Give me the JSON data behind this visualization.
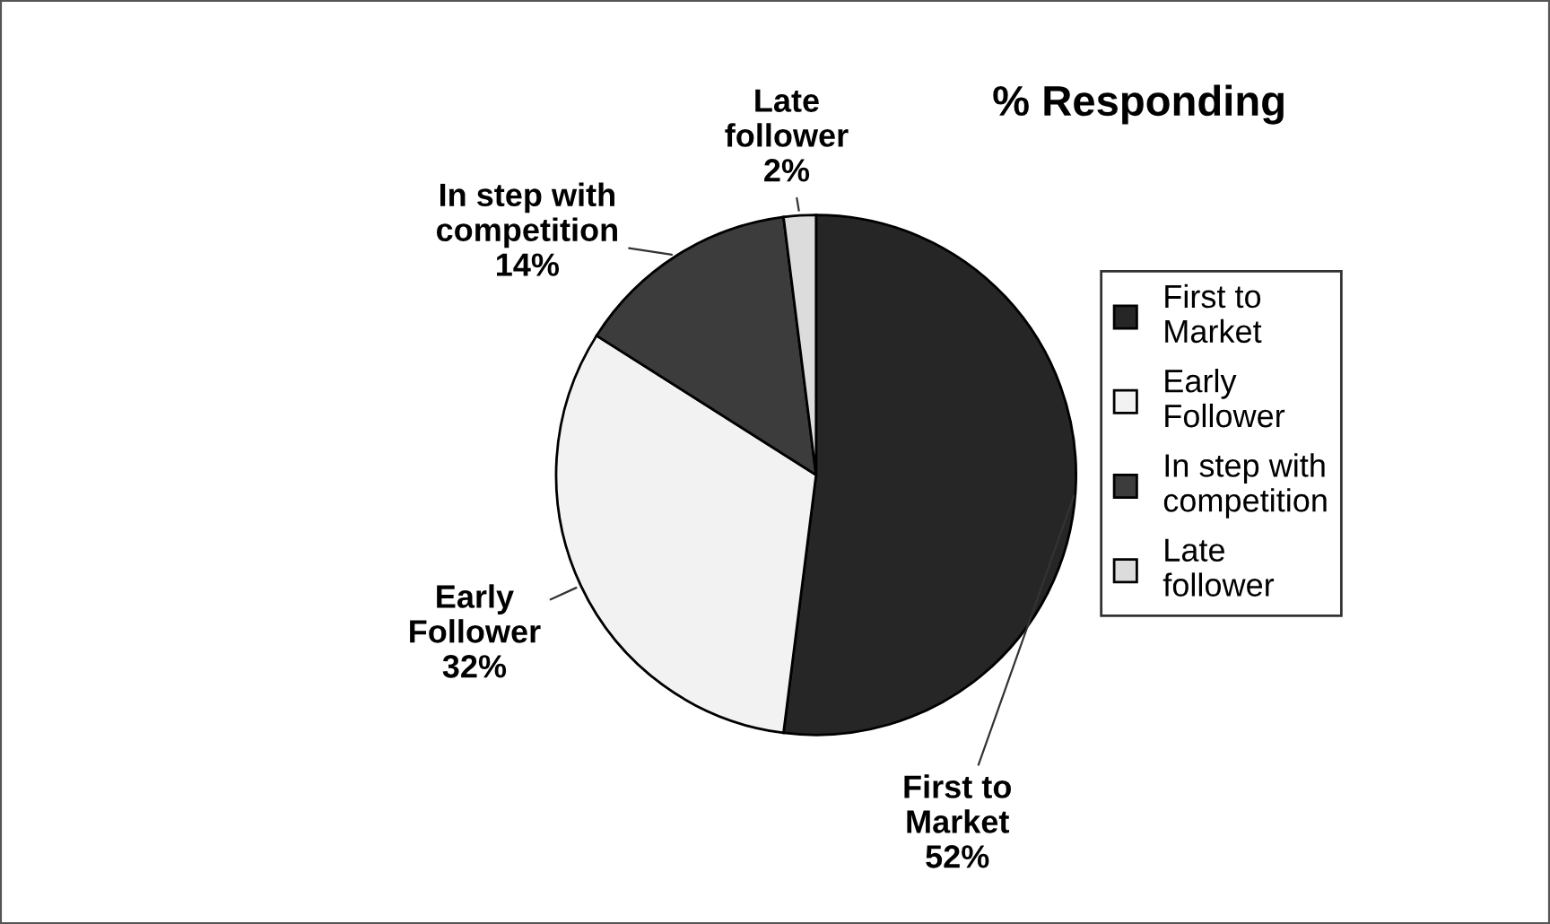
{
  "chart_data": {
    "type": "pie",
    "title": "% Responding",
    "categories": [
      "First to Market",
      "Early Follower",
      "In step with competition",
      "Late follower"
    ],
    "values": [
      52,
      32,
      14,
      2
    ],
    "colors": [
      "#262626",
      "#f2f2f2",
      "#3c3c3c",
      "#dcdcdc"
    ],
    "value_labels": [
      "52%",
      "32%",
      "14%",
      "2%"
    ],
    "legend": "right"
  }
}
